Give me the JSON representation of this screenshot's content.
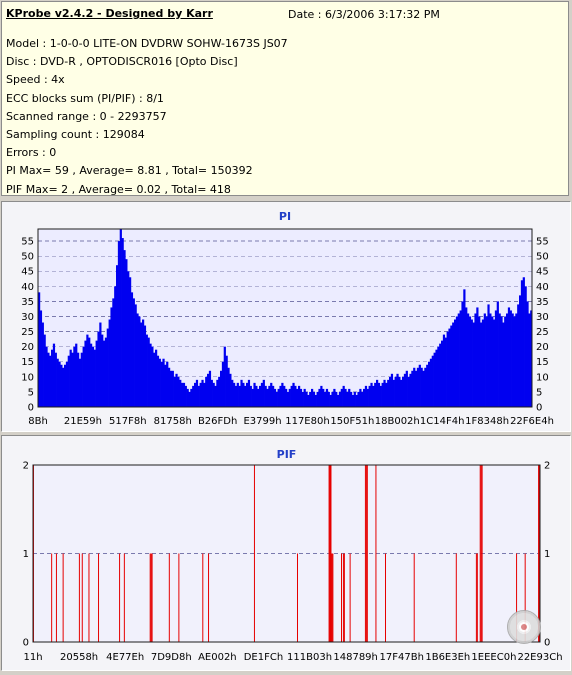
{
  "app": {
    "title": "KProbe v2.4.2 - Designed by Karr",
    "date": "Date : 6/3/2006 3:17:32 PM"
  },
  "info": {
    "lines": [
      "Model : 1-0-0-0 LITE-ON DVDRW SOHW-1673S JS07",
      "Disc : DVD-R , OPTODISCR016 [Opto Disc]",
      "Speed : 4x",
      "ECC blocks sum (PI/PIF) : 8/1",
      "Scanned range : 0 - 2293757",
      "Sampling count : 129084",
      "Errors : 0",
      "PI Max= 59 , Average= 8.81 , Total= 150392",
      "PIF Max= 2 , Average= 0.02 , Total= 418"
    ]
  },
  "colors": {
    "pi": "#0000f0",
    "pif": "#e60000",
    "title": "#2440c8"
  },
  "icon": {
    "name": "disc-icon"
  },
  "chart_data": [
    {
      "type": "bar",
      "title": "PI",
      "ylim": [
        0,
        59
      ],
      "yticks": [
        0,
        5,
        10,
        15,
        20,
        25,
        30,
        35,
        40,
        45,
        50,
        55
      ],
      "xticks": [
        "8Bh",
        "21E59h",
        "517F8h",
        "81758h",
        "B26FDh",
        "E3799h",
        "117E80h",
        "150F51h",
        "18B002h",
        "1C14F4h",
        "1F8348h",
        "22F6E4h"
      ],
      "grid": true,
      "values": [
        38,
        32,
        28,
        24,
        20,
        18,
        17,
        19,
        21,
        18,
        16,
        15,
        14,
        13,
        14,
        15,
        17,
        19,
        18,
        20,
        21,
        18,
        16,
        18,
        20,
        22,
        24,
        23,
        21,
        20,
        19,
        22,
        25,
        28,
        24,
        22,
        23,
        26,
        29,
        33,
        36,
        40,
        47,
        55,
        59,
        56,
        52,
        49,
        45,
        43,
        38,
        36,
        34,
        31,
        30,
        28,
        29,
        27,
        24,
        23,
        21,
        20,
        18,
        19,
        17,
        16,
        15,
        16,
        14,
        15,
        13,
        12,
        12,
        10,
        11,
        10,
        9,
        8,
        8,
        7,
        6,
        5,
        6,
        7,
        8,
        9,
        7,
        8,
        9,
        8,
        10,
        11,
        12,
        9,
        8,
        7,
        9,
        10,
        12,
        15,
        20,
        17,
        13,
        11,
        9,
        8,
        7,
        8,
        7,
        9,
        8,
        7,
        8,
        9,
        7,
        6,
        8,
        7,
        6,
        7,
        8,
        9,
        7,
        6,
        7,
        8,
        7,
        6,
        5,
        6,
        7,
        8,
        7,
        6,
        5,
        6,
        7,
        8,
        7,
        6,
        7,
        6,
        5,
        6,
        5,
        4,
        5,
        6,
        5,
        4,
        5,
        6,
        7,
        6,
        5,
        6,
        5,
        4,
        5,
        6,
        5,
        4,
        5,
        6,
        7,
        6,
        5,
        6,
        5,
        4,
        5,
        4,
        5,
        6,
        5,
        6,
        7,
        6,
        7,
        8,
        7,
        8,
        9,
        8,
        7,
        8,
        9,
        8,
        9,
        10,
        11,
        9,
        10,
        11,
        10,
        9,
        10,
        11,
        12,
        10,
        11,
        12,
        13,
        12,
        13,
        14,
        13,
        12,
        13,
        14,
        15,
        16,
        17,
        18,
        19,
        20,
        21,
        22,
        24,
        23,
        25,
        26,
        27,
        28,
        29,
        30,
        31,
        32,
        35,
        39,
        33,
        31,
        30,
        29,
        28,
        31,
        33,
        30,
        28,
        29,
        31,
        30,
        34,
        31,
        30,
        29,
        32,
        35,
        31,
        30,
        28,
        30,
        31,
        33,
        32,
        31,
        30,
        31,
        34,
        37,
        42,
        43,
        40,
        35,
        31,
        32
      ]
    },
    {
      "type": "bar",
      "title": "PIF",
      "ylim": [
        0,
        2
      ],
      "yticks": [
        0,
        1,
        2
      ],
      "xticks": [
        "11h",
        "20558h",
        "4E77Eh",
        "7D9D8h",
        "AE002h",
        "DE1FCh",
        "111B03h",
        "148789h",
        "17F47Bh",
        "1B6E3Eh",
        "1EEEC0h",
        "22E93Ch"
      ],
      "grid": true,
      "values": [
        2,
        0,
        0,
        0,
        0,
        0,
        0,
        0,
        0,
        0,
        0,
        0,
        0,
        0,
        0,
        0,
        0,
        0,
        0,
        1,
        0,
        0,
        0,
        0,
        1,
        0,
        0,
        0,
        0,
        0,
        0,
        1,
        0,
        0,
        0,
        0,
        0,
        0,
        0,
        0,
        0,
        0,
        0,
        0,
        0,
        0,
        0,
        0,
        1,
        0,
        0,
        1,
        0,
        0,
        0,
        0,
        0,
        0,
        1,
        0,
        0,
        0,
        0,
        0,
        0,
        0,
        0,
        0,
        1,
        0,
        0,
        0,
        0,
        0,
        0,
        0,
        0,
        0,
        0,
        0,
        0,
        0,
        0,
        0,
        0,
        0,
        0,
        0,
        0,
        0,
        1,
        0,
        0,
        0,
        0,
        1,
        0,
        0,
        0,
        0,
        0,
        0,
        0,
        0,
        0,
        0,
        0,
        0,
        0,
        0,
        0,
        0,
        0,
        0,
        0,
        0,
        0,
        0,
        0,
        0,
        0,
        0,
        1,
        1,
        1,
        0,
        0,
        0,
        0,
        0,
        0,
        0,
        0,
        0,
        0,
        0,
        0,
        0,
        0,
        0,
        0,
        0,
        1,
        0,
        0,
        0,
        0,
        0,
        0,
        0,
        0,
        0,
        1,
        0,
        0,
        0,
        0,
        0,
        0,
        0,
        0,
        0,
        0,
        0,
        0,
        0,
        0,
        0,
        0,
        0,
        0,
        0,
        0,
        0,
        0,
        0,
        0,
        1,
        0,
        0,
        0,
        0,
        0,
        1,
        0,
        0,
        0,
        0,
        0,
        0,
        0,
        0,
        0,
        0,
        0,
        0,
        0,
        0,
        0,
        0,
        0,
        0,
        0,
        0,
        0,
        0,
        0,
        0,
        0,
        0,
        0,
        0,
        0,
        0,
        0,
        0,
        0,
        0,
        0,
        0,
        0,
        0,
        0,
        0,
        0,
        0,
        0,
        0,
        0,
        0,
        0,
        2,
        0,
        0,
        0,
        0,
        0,
        0,
        0,
        0,
        0,
        0,
        0,
        0,
        0,
        0,
        0,
        0,
        0,
        0,
        0,
        0,
        0,
        0,
        0,
        0,
        0,
        0,
        0,
        0,
        0,
        0,
        0,
        0,
        0,
        0,
        0,
        0,
        0,
        0,
        0,
        0,
        0,
        0,
        0,
        0,
        1,
        0,
        0,
        0,
        0,
        0,
        0,
        0,
        0,
        0,
        0,
        0,
        0,
        0,
        0,
        0,
        0,
        0,
        0,
        0,
        0,
        0,
        0,
        0,
        0,
        0,
        0,
        0,
        0,
        0,
        0,
        0,
        0,
        2,
        2,
        2,
        1,
        1,
        0,
        0,
        0,
        0,
        0,
        0,
        0,
        0,
        1,
        0,
        1,
        1,
        0,
        0,
        0,
        0,
        0,
        1,
        0,
        0,
        0,
        0,
        0,
        0,
        0,
        0,
        0,
        0,
        0,
        0,
        0,
        0,
        0,
        2,
        2,
        2,
        0,
        0,
        0,
        0,
        0,
        0,
        0,
        0,
        2,
        0,
        0,
        0,
        0,
        0,
        0,
        0,
        0,
        0,
        1,
        0,
        0,
        0,
        0,
        0,
        0,
        0,
        0,
        0,
        0,
        0,
        0,
        0,
        0,
        0,
        0,
        0,
        0,
        0,
        0,
        0,
        0,
        0,
        0,
        0,
        0,
        0,
        0,
        0,
        1,
        0,
        0,
        0,
        0,
        0,
        0,
        0,
        0,
        0,
        0,
        0,
        0,
        0,
        0,
        0,
        0,
        0,
        0,
        0,
        0,
        0,
        0,
        0,
        0,
        0,
        0,
        0,
        0,
        0,
        0,
        0,
        0,
        0,
        0,
        0,
        0,
        0,
        0,
        0,
        0,
        0,
        0,
        0,
        1,
        0,
        0,
        0,
        0,
        0,
        0,
        0,
        0,
        0,
        0,
        0,
        0,
        0,
        0,
        0,
        0,
        0,
        0,
        0,
        0,
        1,
        1,
        0,
        0,
        2,
        2,
        2,
        0,
        0,
        0,
        0,
        0,
        0,
        0,
        0,
        0,
        0,
        0,
        0,
        0,
        0,
        0,
        0,
        0,
        0,
        0,
        0,
        0,
        0,
        0,
        0,
        0,
        0,
        0,
        0,
        0,
        0,
        0,
        0,
        0,
        0,
        0,
        1,
        0,
        0,
        0,
        0,
        0,
        0,
        0,
        0,
        1,
        0,
        0,
        0,
        0,
        0,
        0,
        0,
        0,
        0,
        0,
        0,
        0,
        0,
        2,
        2
      ]
    }
  ]
}
